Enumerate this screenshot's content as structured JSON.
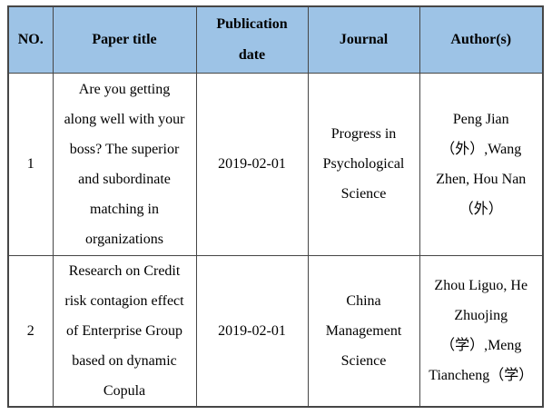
{
  "table": {
    "header": {
      "no": "NO.",
      "title": "Paper title",
      "date": "Publication\ndate",
      "journal": "Journal",
      "authors": "Author(s)"
    },
    "rows": [
      {
        "no": "1",
        "title": "Are you getting\nalong well with your\nboss? The superior\nand subordinate\nmatching in\norganizations",
        "date": "2019-02-01",
        "journal": "Progress in\nPsychological\nScience",
        "authors": "Peng Jian\n（外）,Wang\nZhen, Hou Nan\n（外）"
      },
      {
        "no": "2",
        "title": "Research on Credit\nrisk contagion effect\nof Enterprise Group\nbased on dynamic\nCopula",
        "date": "2019-02-01",
        "journal": "China\nManagement\nScience",
        "authors": "Zhou Liguo, He\nZhuojing\n（学）,Meng\nTiancheng（学）"
      }
    ],
    "colors": {
      "header_bg": "#9DC3E6",
      "border": "#464646",
      "text": "#000000",
      "page_bg": "#FFFFFF"
    }
  }
}
